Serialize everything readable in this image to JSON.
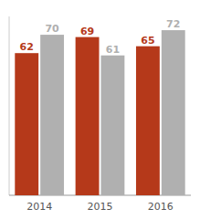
{
  "chart_data": {
    "type": "bar",
    "categories": [
      "2014",
      "2015",
      "2016"
    ],
    "series": [
      {
        "color": "#b5391a",
        "values": [
          62,
          69,
          65
        ]
      },
      {
        "color": "#b0b0b0",
        "values": [
          70,
          61,
          72
        ]
      }
    ],
    "ylim": [
      0,
      78
    ],
    "yticks": [],
    "tick_labels": "x",
    "data_labels": true,
    "grid": false
  }
}
